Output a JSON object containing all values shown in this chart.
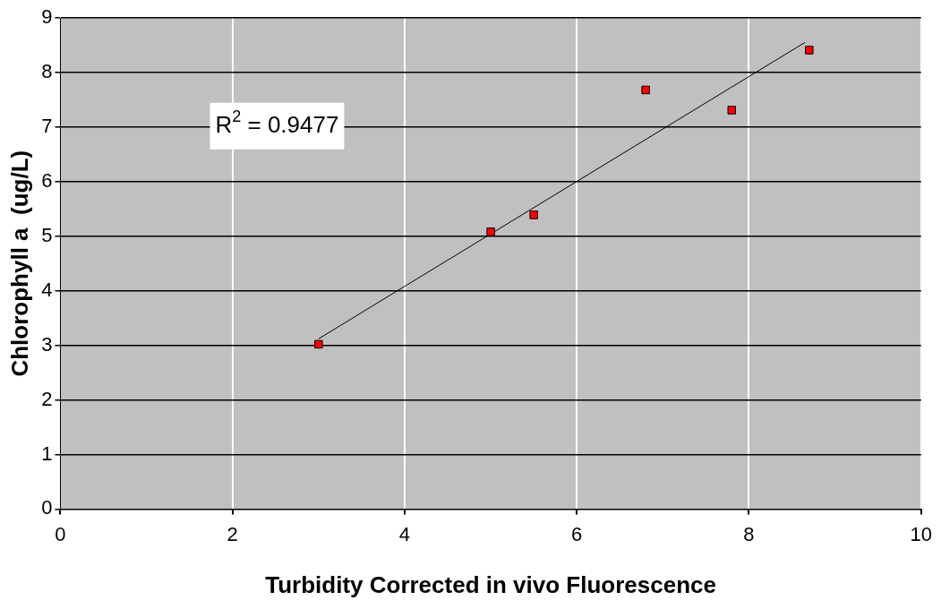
{
  "chart_data": {
    "type": "scatter",
    "xlabel": "Turbidity Corrected in vivo Fluorescence",
    "ylabel": "Chlorophyll a  (ug/L)",
    "series": [
      {
        "type": "scatter",
        "color": "#ff0000",
        "x": [
          3.0,
          5.0,
          5.5,
          6.8,
          7.8,
          8.7
        ],
        "values": [
          3.02,
          5.08,
          5.39,
          7.68,
          7.31,
          8.41
        ],
        "marker": "square"
      },
      {
        "type": "line",
        "color": "#000000",
        "x": [
          3.0,
          8.65
        ],
        "values": [
          3.12,
          8.55
        ],
        "marker": "none"
      }
    ],
    "xlim": [
      0,
      10
    ],
    "xticks": [
      0,
      2,
      4,
      6,
      8,
      10
    ],
    "ylim": [
      0,
      9
    ],
    "yticks": [
      0,
      1,
      2,
      3,
      4,
      5,
      6,
      7,
      8,
      9
    ],
    "grid": true,
    "legend": false,
    "annotations": [
      "R$^{2}$ = 0.9477"
    ]
  }
}
